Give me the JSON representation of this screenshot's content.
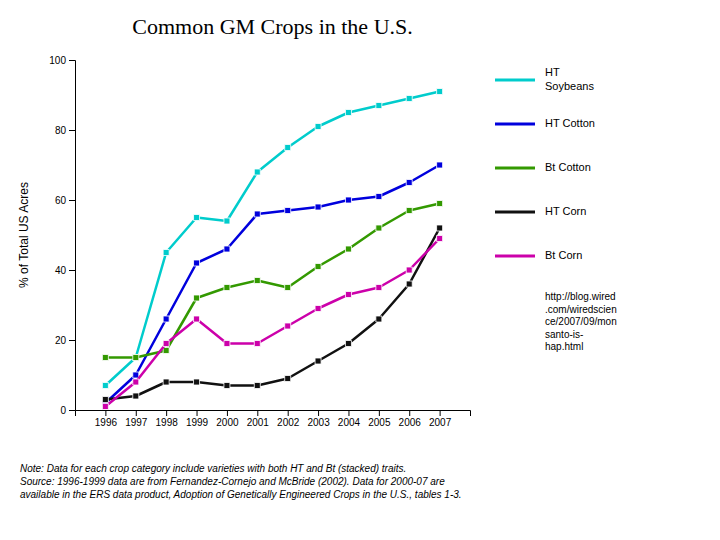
{
  "chart_data": {
    "type": "line",
    "title": "Common GM Crops in the U.S.",
    "y_label": "% of Total US Acres",
    "x": [
      1996,
      1997,
      1998,
      1999,
      2000,
      2001,
      2002,
      2003,
      2004,
      2005,
      2006,
      2007
    ],
    "series": [
      {
        "name": "HT\nSoybeans",
        "color": "#00CCCC",
        "values": [
          7,
          15,
          45,
          55,
          54,
          68,
          75,
          81,
          85,
          87,
          89,
          91
        ]
      },
      {
        "name": "HT Cotton",
        "color": "#0000DD",
        "values": [
          2,
          10,
          26,
          42,
          46,
          56,
          57,
          58,
          60,
          61,
          65,
          70
        ]
      },
      {
        "name": "Bt Cotton",
        "color": "#339900",
        "values": [
          15,
          15,
          17,
          32,
          35,
          37,
          35,
          41,
          46,
          52,
          57,
          59
        ]
      },
      {
        "name": "HT Corn",
        "color": "#111111",
        "values": [
          3,
          4,
          8,
          8,
          7,
          7,
          9,
          14,
          19,
          26,
          36,
          52
        ]
      },
      {
        "name": "Bt Corn",
        "color": "#CC00AA",
        "values": [
          1,
          8,
          19,
          26,
          19,
          19,
          24,
          29,
          33,
          35,
          40,
          49
        ]
      }
    ],
    "xlim": [
      1995,
      2008
    ],
    "xticks": [
      1996,
      1997,
      1998,
      1999,
      2000,
      2001,
      2002,
      2003,
      2004,
      2005,
      2006,
      2007
    ],
    "ylim": [
      0,
      100
    ],
    "yticks": [
      0,
      20,
      40,
      60,
      80,
      100
    ],
    "grid": false,
    "legend": "right",
    "marker": "square",
    "annotations": [
      "Note: Data for each crop category include varieties with both HT and Bt (stacked) traits.\nSource: 1996-1999 data are from Fernandez-Cornejo and McBride (2002). Data for 2000-07 are\navailable in the ERS data product, Adoption of Genetically Engineered Crops in the U.S., tables 1-3.",
      "http://blog.wired\n.com/wiredscien\nce/2007/09/mon\nsanto-is-\nhap.html"
    ]
  }
}
